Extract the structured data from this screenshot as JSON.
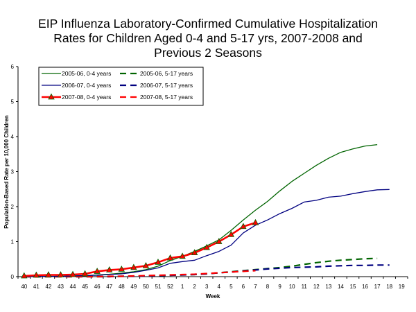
{
  "chart_data": {
    "type": "line",
    "title": [
      "EIP Influenza Laboratory-Confirmed Cumulative Hospitalization",
      "Rates for Children Aged 0-4 and 5-17 yrs, 2007-2008 and",
      "Previous 2 Seasons"
    ],
    "xlabel": "Week",
    "ylabel": "Population-Based Rate per 10,000 Children",
    "ylim": [
      0,
      6
    ],
    "yticks": [
      "0",
      "1",
      "2",
      "3",
      "4",
      "5",
      "6"
    ],
    "categories": [
      "40",
      "41",
      "42",
      "43",
      "44",
      "45",
      "46",
      "47",
      "48",
      "49",
      "50",
      "51",
      "52",
      "1",
      "2",
      "3",
      "4",
      "5",
      "6",
      "7",
      "8",
      "9",
      "10",
      "11",
      "12",
      "13",
      "14",
      "15",
      "16",
      "17",
      "18",
      "19"
    ],
    "legend_position": "top-left",
    "series": [
      {
        "name": "2005-06, 0-4 years",
        "color": "#006400",
        "dash": false,
        "marker": false,
        "values": [
          0.0,
          0.0,
          0.01,
          0.01,
          0.02,
          0.03,
          0.05,
          0.07,
          0.1,
          0.14,
          0.2,
          0.3,
          0.46,
          0.58,
          0.72,
          0.88,
          1.05,
          1.32,
          1.62,
          1.9,
          2.15,
          2.45,
          2.72,
          2.95,
          3.18,
          3.38,
          3.55,
          3.65,
          3.73,
          3.77,
          null,
          null
        ]
      },
      {
        "name": "2005-06, 5-17 years",
        "color": "#006400",
        "dash": true,
        "marker": false,
        "values": [
          0.0,
          0.0,
          0.0,
          0.0,
          0.0,
          0.0,
          0.0,
          0.0,
          0.01,
          0.01,
          0.02,
          0.03,
          0.04,
          0.05,
          0.06,
          0.08,
          0.11,
          0.14,
          0.17,
          0.2,
          0.23,
          0.26,
          0.3,
          0.35,
          0.4,
          0.44,
          0.47,
          0.49,
          0.51,
          0.52,
          null,
          null
        ]
      },
      {
        "name": "2006-07, 0-4 years",
        "color": "#000080",
        "dash": false,
        "marker": false,
        "values": [
          0.0,
          0.0,
          0.01,
          0.01,
          0.02,
          0.03,
          0.04,
          0.06,
          0.08,
          0.12,
          0.18,
          0.25,
          0.38,
          0.43,
          0.47,
          0.6,
          0.72,
          0.9,
          1.25,
          1.47,
          1.62,
          1.8,
          1.95,
          2.13,
          2.18,
          2.27,
          2.3,
          2.37,
          2.43,
          2.48,
          2.49,
          null
        ]
      },
      {
        "name": "2006-07, 5-17 years",
        "color": "#000080",
        "dash": true,
        "marker": false,
        "values": [
          0.0,
          0.0,
          0.0,
          0.0,
          0.0,
          0.0,
          0.0,
          0.0,
          0.01,
          0.01,
          0.02,
          0.03,
          0.04,
          0.05,
          0.06,
          0.08,
          0.11,
          0.13,
          0.16,
          0.19,
          0.22,
          0.24,
          0.26,
          0.27,
          0.28,
          0.3,
          0.31,
          0.32,
          0.32,
          0.33,
          0.33,
          null
        ]
      },
      {
        "name": "2007-08, 0-4 years",
        "color": "#FF0000",
        "dash": false,
        "marker": true,
        "values": [
          0.02,
          0.04,
          0.05,
          0.05,
          0.06,
          0.08,
          0.15,
          0.19,
          0.21,
          0.26,
          0.31,
          0.41,
          0.53,
          0.58,
          0.68,
          0.83,
          1.0,
          1.2,
          1.43,
          1.54,
          null,
          null,
          null,
          null,
          null,
          null,
          null,
          null,
          null,
          null,
          null,
          null
        ]
      },
      {
        "name": "2007-08, 5-17 years",
        "color": "#FF0000",
        "dash": true,
        "marker": false,
        "values": [
          0.0,
          0.0,
          0.0,
          0.0,
          0.0,
          0.0,
          0.0,
          0.01,
          0.01,
          0.02,
          0.03,
          0.04,
          0.05,
          0.06,
          0.07,
          0.09,
          0.11,
          0.13,
          0.15,
          0.17,
          null,
          null,
          null,
          null,
          null,
          null,
          null,
          null,
          null,
          null,
          null,
          null
        ]
      }
    ]
  }
}
